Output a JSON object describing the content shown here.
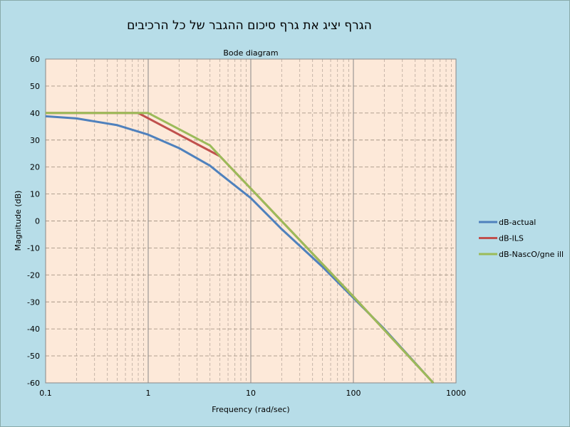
{
  "header": {
    "title": "הגרף יציג את גרף סיכום ההגבר של כל הרכיבים"
  },
  "chart_data": {
    "type": "line",
    "title": "Bode diagram",
    "xlabel": "Frequency (rad/sec)",
    "ylabel": "Magnitude (dB)",
    "xscale": "log",
    "xlim": [
      0.1,
      1000
    ],
    "ylim": [
      -60,
      60
    ],
    "xticks": [
      "0.1",
      "1",
      "10",
      "100",
      "1000"
    ],
    "yticks": [
      "60",
      "50",
      "40",
      "30",
      "20",
      "10",
      "0",
      "-10",
      "-20",
      "-30",
      "-40",
      "-50",
      "-60"
    ],
    "grid": true,
    "legend": "right",
    "plot_background": "#fde9d9",
    "series": [
      {
        "name": "dB-actual",
        "color": "#4f81bd",
        "x": [
          0.1,
          0.2,
          0.5,
          1,
          2,
          4,
          5,
          10,
          20,
          50,
          100,
          200,
          600
        ],
        "y": [
          38.8,
          38,
          35.5,
          32,
          27,
          20.5,
          17.5,
          8.5,
          -3,
          -17,
          -28.5,
          -40,
          -60
        ]
      },
      {
        "name": "dB-ILS",
        "color": "#c0504d",
        "x": [
          0.1,
          0.8,
          5,
          10,
          100,
          600
        ],
        "y": [
          40,
          40,
          24,
          12,
          -28,
          -60
        ]
      },
      {
        "name": "dB-NascO/gne ill",
        "color": "#9bbb59",
        "x": [
          0.1,
          1,
          4,
          5,
          10,
          100,
          600
        ],
        "y": [
          40,
          40,
          28,
          24,
          12,
          -28,
          -60
        ]
      }
    ]
  }
}
